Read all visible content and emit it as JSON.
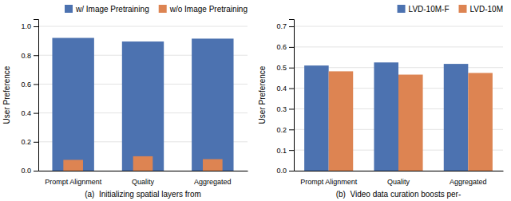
{
  "chart_data": [
    {
      "type": "overlay",
      "categories": [
        "Prompt Alignment",
        "Quality",
        "Aggregated"
      ],
      "series": [
        {
          "name": "w/ Image Pretraining",
          "color": "#4C72B0",
          "values": [
            0.92,
            0.895,
            0.915
          ]
        },
        {
          "name": "w/o Image Pretraining",
          "color": "#DD8452",
          "values": [
            0.075,
            0.1,
            0.08
          ]
        }
      ],
      "y_label": "User Preference",
      "ylim": [
        0.0,
        1.05
      ],
      "yticks": [
        {
          "value": 0.0,
          "label": "0.0"
        },
        0.2,
        0.4,
        0.6,
        0.8,
        {
          "value": 1.0,
          "label": "1.0"
        }
      ],
      "grid": true,
      "legend": "upper right",
      "annotations": [
        "(a)  Initializing spatial layers from"
      ]
    },
    {
      "type": "bar",
      "categories": [
        "Prompt Alignment",
        "Quality",
        "Aggregated"
      ],
      "series": [
        {
          "name": "LVD-10M-F",
          "color": "#4C72B0",
          "values": [
            0.51,
            0.525,
            0.518
          ]
        },
        {
          "name": "LVD-10M",
          "color": "#DD8452",
          "values": [
            0.482,
            0.466,
            0.474
          ]
        }
      ],
      "y_label": "User Preference",
      "ylim": [
        0.0,
        0.735
      ],
      "yticks": [
        {
          "value": 0.0,
          "label": "0.0"
        },
        0.1,
        0.2,
        0.3,
        0.4,
        0.5,
        0.6,
        0.7
      ],
      "grid": true,
      "legend": "upper right",
      "annotations": [
        "(b)  Video data curation boosts per-"
      ]
    }
  ]
}
